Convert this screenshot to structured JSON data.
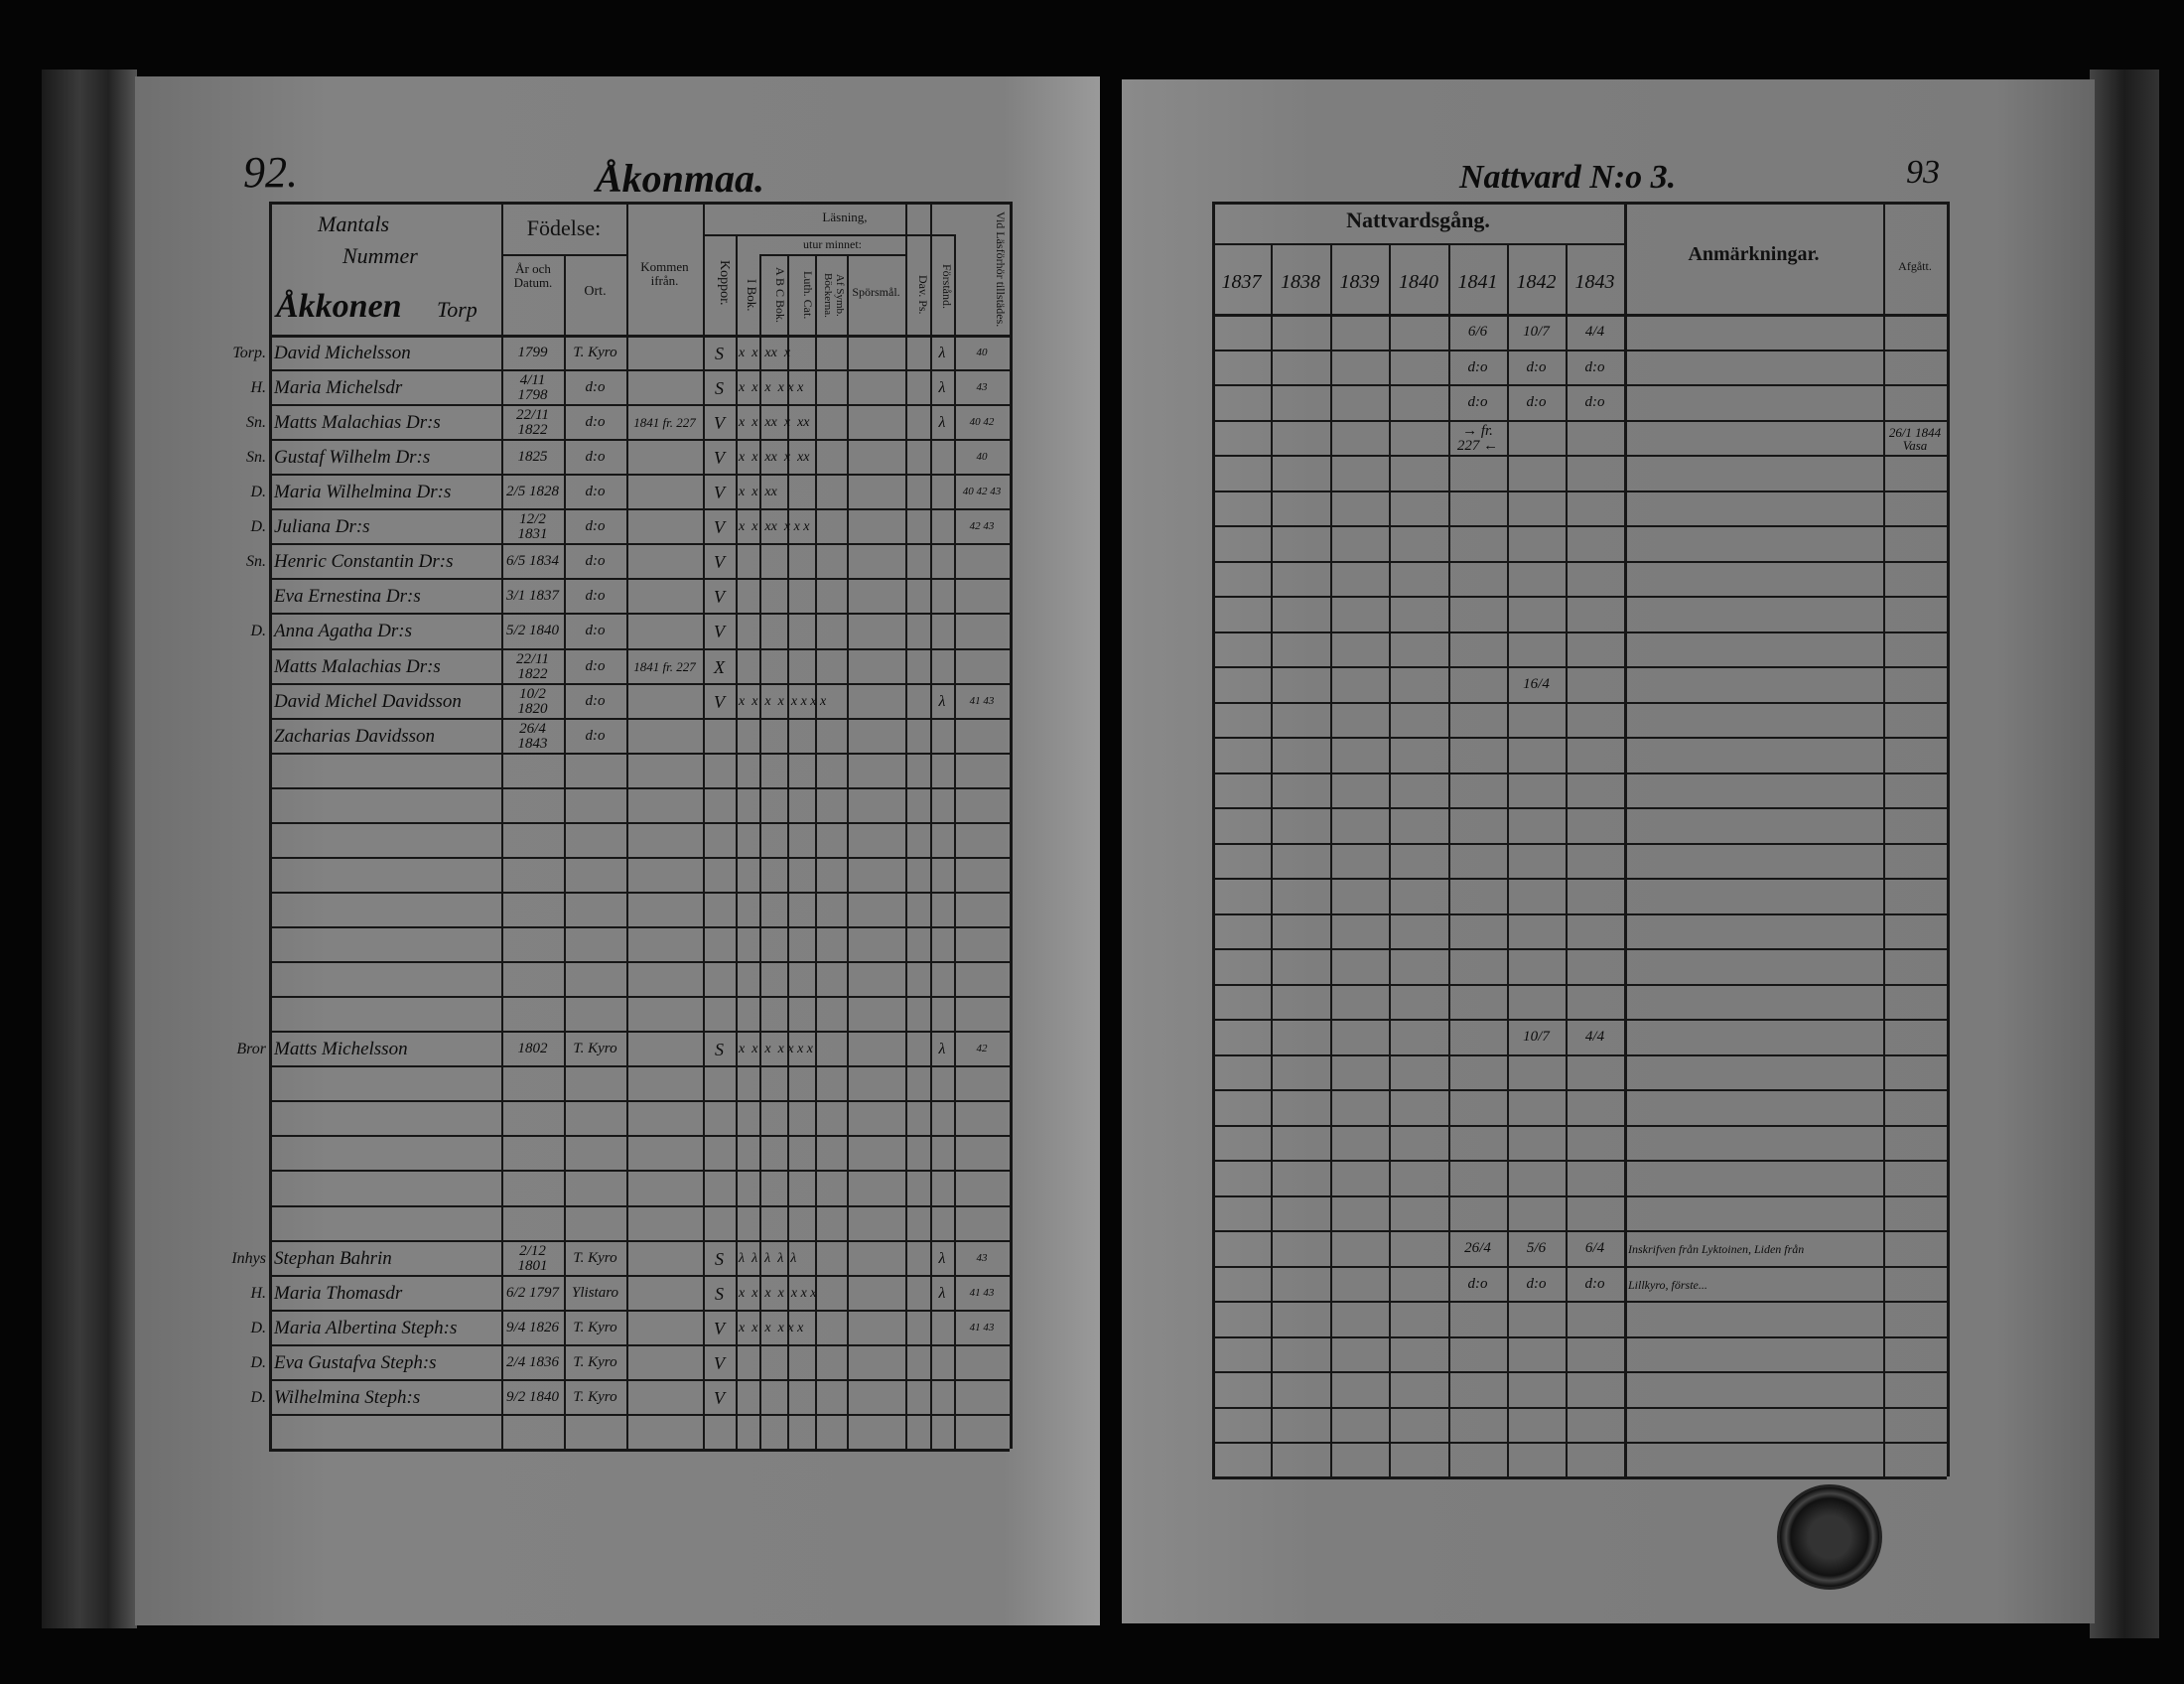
{
  "left_page": {
    "page_number": "92.",
    "village": "Åkonmaa.",
    "header": {
      "names_column": [
        "Mantals",
        "Nummer",
        "Åkkonen",
        "Torp"
      ],
      "birth": "Födelse:",
      "birth_year": "År och Datum.",
      "birth_place": "Ort.",
      "arrived_from": "Kommen ifrån.",
      "vaccinated": "Koppor.",
      "reading": "Läsning,",
      "book_reading": "I Bok.",
      "by_heart": "utur minnet:",
      "abc_book": "A B C Bok.",
      "luth_cat": "Luth. Cat.",
      "symbol_books": "Af Symb. Böckerna.",
      "questions": "Spörsmål.",
      "dav_ps": "Dav. Ps.",
      "understanding": "Förstånd.",
      "catechetical": "Vid Läsförhör tillstädes."
    },
    "rows": [
      {
        "row": 0,
        "rel": "Torp.",
        "name": "David Michelsson",
        "born": "1799",
        "place": "T. Kyro",
        "arrived": "",
        "vacc": "S",
        "reading": "x  x  xx  x",
        "underst": "λ",
        "present": "40"
      },
      {
        "row": 1,
        "rel": "H.",
        "name": "Maria Michelsdr",
        "born": "4/11 1798",
        "place": "d:o",
        "arrived": "",
        "vacc": "S",
        "reading": "x  x  x  x x x",
        "underst": "λ",
        "present": "43"
      },
      {
        "row": 2,
        "rel": "Sn.",
        "name": "Matts Malachias Dr:s",
        "born": "22/11 1822",
        "place": "d:o",
        "arrived": "1841 fr. 227",
        "vacc": "V",
        "reading": "x  x  xx  x  xx",
        "underst": "λ",
        "present": "40 42"
      },
      {
        "row": 3,
        "rel": "Sn.",
        "name": "Gustaf Wilhelm Dr:s",
        "born": "1825",
        "place": "d:o",
        "arrived": "",
        "vacc": "V",
        "reading": "x  x  xx  x  xx",
        "underst": "",
        "present": "40"
      },
      {
        "row": 4,
        "rel": "D.",
        "name": "Maria Wilhelmina Dr:s",
        "born": "2/5 1828",
        "place": "d:o",
        "arrived": "",
        "vacc": "V",
        "reading": "x  x  xx",
        "underst": "",
        "present": "40 42 43"
      },
      {
        "row": 5,
        "rel": "D.",
        "name": "Juliana Dr:s",
        "born": "12/2 1831",
        "place": "d:o",
        "arrived": "",
        "vacc": "V",
        "reading": "x  x  xx  x x x",
        "underst": "",
        "present": "42 43"
      },
      {
        "row": 6,
        "rel": "Sn.",
        "name": "Henric Constantin Dr:s",
        "born": "6/5 1834",
        "place": "d:o",
        "arrived": "",
        "vacc": "V",
        "reading": "",
        "underst": "",
        "present": ""
      },
      {
        "row": 7,
        "rel": "",
        "name": "Eva Ernestina Dr:s",
        "born": "3/1 1837",
        "place": "d:o",
        "arrived": "",
        "vacc": "V",
        "reading": "",
        "underst": "",
        "present": ""
      },
      {
        "row": 8,
        "rel": "D.",
        "name": "Anna Agatha Dr:s",
        "born": "5/2 1840",
        "place": "d:o",
        "arrived": "",
        "vacc": "V",
        "reading": "",
        "underst": "",
        "present": ""
      },
      {
        "row": 9,
        "rel": "",
        "name": "Matts Malachias Dr:s",
        "born": "22/11 1822",
        "place": "d:o",
        "arrived": "1841 fr. 227",
        "vacc": "X",
        "reading": "",
        "underst": "",
        "present": ""
      },
      {
        "row": 10,
        "rel": "",
        "name": "David Michel Davidsson",
        "born": "10/2 1820",
        "place": "d:o",
        "arrived": "",
        "vacc": "V",
        "reading": "x  x  x  x  x x x x",
        "underst": "λ",
        "present": "41 43"
      },
      {
        "row": 11,
        "rel": "",
        "name": "Zacharias Davidsson",
        "born": "26/4 1843",
        "place": "d:o",
        "arrived": "",
        "vacc": "",
        "reading": "",
        "underst": "",
        "present": ""
      },
      {
        "row": 20,
        "rel": "Bror",
        "name": "Matts Michelsson",
        "born": "1802",
        "place": "T. Kyro",
        "arrived": "",
        "vacc": "S",
        "reading": "x  x  x  x x x x",
        "underst": "λ",
        "present": "42"
      },
      {
        "row": 26,
        "rel": "Inhys",
        "name": "Stephan Bahrin",
        "born": "2/12 1801",
        "place": "T. Kyro",
        "arrived": "",
        "vacc": "S",
        "reading": "λ  λ  λ  λ  λ",
        "underst": "λ",
        "present": "43"
      },
      {
        "row": 27,
        "rel": "H.",
        "name": "Maria Thomasdr",
        "born": "6/2 1797",
        "place": "Ylistaro",
        "arrived": "",
        "vacc": "S",
        "reading": "x  x  x  x  x x x",
        "underst": "λ",
        "present": "41 43"
      },
      {
        "row": 28,
        "rel": "D.",
        "name": "Maria Albertina Steph:s",
        "born": "9/4 1826",
        "place": "T. Kyro",
        "arrived": "",
        "vacc": "V",
        "reading": "x  x  x  x x x",
        "underst": "",
        "present": "41 43"
      },
      {
        "row": 29,
        "rel": "D.",
        "name": "Eva Gustafva Steph:s",
        "born": "2/4 1836",
        "place": "T. Kyro",
        "arrived": "",
        "vacc": "V",
        "reading": "",
        "underst": "",
        "present": ""
      },
      {
        "row": 30,
        "rel": "D.",
        "name": "Wilhelmina Steph:s",
        "born": "9/2 1840",
        "place": "T. Kyro",
        "arrived": "",
        "vacc": "V",
        "reading": "",
        "underst": "",
        "present": ""
      }
    ]
  },
  "right_page": {
    "title": "Nattvard N:o 3.",
    "page_number": "93",
    "header": {
      "communion": "Nattvardsgång.",
      "years": [
        "1837",
        "1838",
        "1839",
        "1840",
        "1841",
        "1842",
        "1843"
      ],
      "remarks": "Anmärkningar.",
      "departed": "Afgått."
    },
    "entries": [
      {
        "row": 0,
        "col": 4,
        "text": "6/6"
      },
      {
        "row": 0,
        "col": 5,
        "text": "10/7"
      },
      {
        "row": 0,
        "col": 6,
        "text": "4/4"
      },
      {
        "row": 1,
        "col": 4,
        "text": "d:o"
      },
      {
        "row": 1,
        "col": 5,
        "text": "d:o"
      },
      {
        "row": 1,
        "col": 6,
        "text": "d:o"
      },
      {
        "row": 2,
        "col": 4,
        "text": "d:o"
      },
      {
        "row": 2,
        "col": 5,
        "text": "d:o"
      },
      {
        "row": 2,
        "col": 6,
        "text": "d:o"
      },
      {
        "row": 3,
        "col": 4,
        "text": "→ fr. 227 ←"
      },
      {
        "row": 10,
        "col": 5,
        "text": "16/4"
      },
      {
        "row": 20,
        "col": 5,
        "text": "10/7"
      },
      {
        "row": 20,
        "col": 6,
        "text": "4/4"
      },
      {
        "row": 26,
        "col": 4,
        "text": "26/4"
      },
      {
        "row": 26,
        "col": 5,
        "text": "5/6"
      },
      {
        "row": 26,
        "col": 6,
        "text": "6/4"
      },
      {
        "row": 27,
        "col": 4,
        "text": "d:o"
      },
      {
        "row": 27,
        "col": 5,
        "text": "d:o"
      },
      {
        "row": 27,
        "col": 6,
        "text": "d:o"
      }
    ],
    "remarks": [
      {
        "row": 26,
        "text": "Inskrifven från Lyktoinen, Liden från"
      },
      {
        "row": 27,
        "text": "Lillkyro, förste..."
      }
    ],
    "departed": [
      {
        "row": 3,
        "text": "26/1 1844 Vasa"
      }
    ]
  }
}
